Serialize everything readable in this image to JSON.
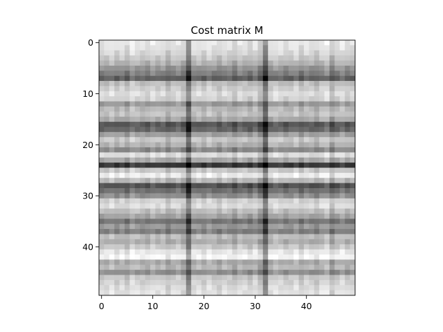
{
  "chart_data": {
    "type": "heatmap",
    "title": "Cost matrix M",
    "xlabel": "",
    "ylabel": "",
    "rows": 50,
    "cols": 50,
    "xlim": [
      -0.5,
      49.5
    ],
    "ylim": [
      49.5,
      -0.5
    ],
    "y_inverted": true,
    "grid": false,
    "legend": "none",
    "colormap": "gray",
    "x_ticks": [
      0,
      10,
      20,
      30,
      40
    ],
    "y_ticks": [
      0,
      10,
      20,
      30,
      40
    ],
    "x_tick_labels": [
      "0",
      "10",
      "20",
      "30",
      "40"
    ],
    "y_tick_labels": [
      "0",
      "10",
      "20",
      "30",
      "40"
    ],
    "row_intensity": [
      0.9,
      0.88,
      0.84,
      0.78,
      0.7,
      0.58,
      0.5,
      0.38,
      0.74,
      0.8,
      0.86,
      0.82,
      0.6,
      0.72,
      0.76,
      0.66,
      0.34,
      0.4,
      0.62,
      0.78,
      0.7,
      0.54,
      0.86,
      0.66,
      0.22,
      0.78,
      0.92,
      0.72,
      0.32,
      0.44,
      0.56,
      0.82,
      0.86,
      0.74,
      0.64,
      0.46,
      0.6,
      0.5,
      0.74,
      0.68,
      0.78,
      0.9,
      0.96,
      0.66,
      0.72,
      0.56,
      0.78,
      0.82,
      0.86,
      0.88
    ],
    "col_intensity": [
      0.0,
      0.0,
      0.04,
      -0.02,
      0.02,
      -0.04,
      0.06,
      0.02,
      0.0,
      -0.02,
      0.04,
      0.0,
      0.02,
      -0.06,
      0.0,
      0.02,
      -0.04,
      -0.3,
      0.0,
      0.02,
      -0.02,
      0.04,
      0.0,
      -0.04,
      0.02,
      0.0,
      -0.06,
      0.02,
      0.0,
      -0.04,
      0.02,
      -0.08,
      -0.32,
      0.0,
      0.04,
      0.02,
      -0.02,
      0.0,
      0.04,
      -0.04,
      0.02,
      0.0,
      -0.04,
      0.02,
      0.06,
      -0.08,
      0.0,
      0.04,
      -0.02,
      0.0
    ]
  }
}
